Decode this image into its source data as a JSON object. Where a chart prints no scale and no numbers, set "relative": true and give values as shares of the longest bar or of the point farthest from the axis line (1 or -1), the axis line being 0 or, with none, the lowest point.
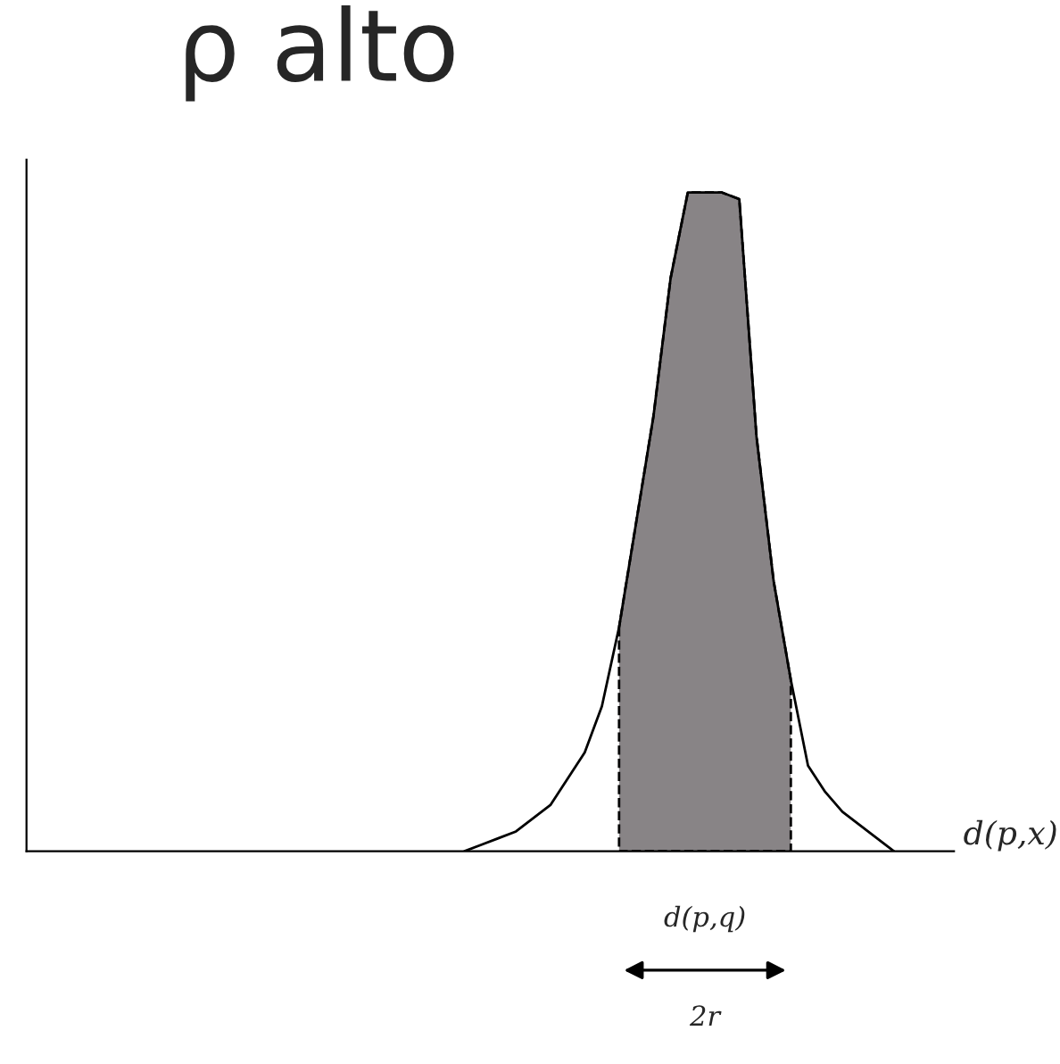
{
  "chart_data": {
    "type": "line",
    "title": "ρ alto",
    "xlabel": "d(p,x)",
    "relative": true,
    "categories": [
      null,
      null,
      null,
      null,
      null,
      null,
      null,
      null,
      null,
      null,
      null,
      null,
      null,
      null,
      null,
      null,
      null,
      null,
      null,
      null,
      null,
      null,
      null,
      null,
      null,
      null,
      null,
      null,
      null,
      null,
      null,
      null,
      null,
      null,
      null,
      null,
      null,
      null,
      null,
      null,
      null,
      null,
      null,
      null,
      null,
      null,
      null,
      null,
      null,
      null,
      null,
      null,
      null,
      null
    ],
    "series": [
      {
        "color": "#000000",
        "values": [
          null,
          null,
          null,
          null,
          null,
          null,
          null,
          null,
          null,
          null,
          null,
          null,
          null,
          null,
          null,
          null,
          null,
          null,
          null,
          null,
          null,
          null,
          null,
          null,
          null,
          0.0,
          0.01,
          0.02,
          0.03,
          0.05,
          0.07,
          0.11,
          0.15,
          0.22,
          0.34,
          0.5,
          0.66,
          0.87,
          1.0,
          1.0,
          1.0,
          0.99,
          0.63,
          0.41,
          0.26,
          0.13,
          0.09,
          0.06,
          0.04,
          0.02,
          0.0,
          null,
          null,
          null
        ]
      },
      {
        "type": "area",
        "color": "#888486",
        "line_style": "dashed",
        "values": [
          null,
          null,
          null,
          null,
          null,
          null,
          null,
          null,
          null,
          null,
          null,
          null,
          null,
          null,
          null,
          null,
          null,
          null,
          null,
          null,
          null,
          null,
          null,
          null,
          null,
          null,
          null,
          null,
          null,
          null,
          null,
          null,
          null,
          null,
          0.34,
          0.5,
          0.66,
          0.87,
          1.0,
          1.0,
          1.0,
          0.99,
          0.63,
          0.41,
          0.26,
          null,
          null,
          null,
          null,
          null,
          null,
          null,
          null,
          null
        ]
      }
    ],
    "annotations": [
      "d(p,q)",
      "2r"
    ]
  }
}
